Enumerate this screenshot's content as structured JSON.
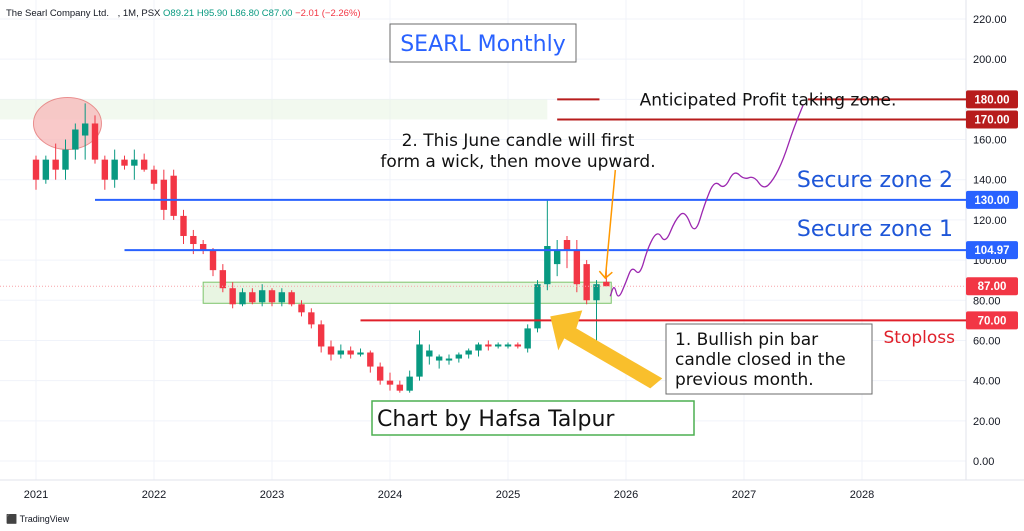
{
  "header": {
    "company": "The Searl Company Ltd.",
    "meta": ", 1M, PSX",
    "ohlc": "O89.21 H95.90 L86.80 C87.00",
    "change": "−2.01 (−2.26%)"
  },
  "footer": {
    "brand": "TradingView",
    "logo_icon": "tradingview-logo-icon"
  },
  "colors": {
    "up": "#089981",
    "down": "#f23645",
    "blue_line": "#2962ff",
    "red_line": "#e0202a",
    "dark_red": "#b71c1c",
    "projection": "#9c27b0",
    "arrow": "#f9bf2c",
    "title_border": "#2962ff",
    "credit_border": "#4caf50"
  },
  "chart_data": {
    "type": "candlestick",
    "title": "SEARL Monthly",
    "price_axis": {
      "ticks": [
        "0.00",
        "20.00",
        "40.00",
        "60.00",
        "80.00",
        "100.00",
        "120.00",
        "140.00",
        "160.00",
        "180.00",
        "200.00",
        "220.00"
      ],
      "range": [
        -6,
        224
      ]
    },
    "time_axis": {
      "labels": [
        "2021",
        "2022",
        "2023",
        "2024",
        "2025",
        "2026",
        "2027",
        "2028"
      ],
      "start": "2021-01",
      "end": "2028-06"
    },
    "candles": [
      {
        "t": "2021-01",
        "o": 150,
        "h": 152,
        "l": 135,
        "c": 140
      },
      {
        "t": "2021-02",
        "o": 140,
        "h": 152,
        "l": 138,
        "c": 150
      },
      {
        "t": "2021-03",
        "o": 150,
        "h": 158,
        "l": 140,
        "c": 145
      },
      {
        "t": "2021-04",
        "o": 145,
        "h": 160,
        "l": 140,
        "c": 155
      },
      {
        "t": "2021-05",
        "o": 155,
        "h": 168,
        "l": 150,
        "c": 165
      },
      {
        "t": "2021-06",
        "o": 162,
        "h": 178,
        "l": 150,
        "c": 168
      },
      {
        "t": "2021-07",
        "o": 168,
        "h": 172,
        "l": 148,
        "c": 150
      },
      {
        "t": "2021-08",
        "o": 150,
        "h": 152,
        "l": 135,
        "c": 140
      },
      {
        "t": "2021-09",
        "o": 140,
        "h": 155,
        "l": 136,
        "c": 150
      },
      {
        "t": "2021-10",
        "o": 150,
        "h": 152,
        "l": 145,
        "c": 147
      },
      {
        "t": "2021-11",
        "o": 147,
        "h": 155,
        "l": 140,
        "c": 150
      },
      {
        "t": "2021-12",
        "o": 150,
        "h": 153,
        "l": 144,
        "c": 145
      },
      {
        "t": "2022-01",
        "o": 145,
        "h": 147,
        "l": 135,
        "c": 138
      },
      {
        "t": "2022-02",
        "o": 140,
        "h": 145,
        "l": 120,
        "c": 125
      },
      {
        "t": "2022-03",
        "o": 142,
        "h": 145,
        "l": 120,
        "c": 122
      },
      {
        "t": "2022-04",
        "o": 122,
        "h": 125,
        "l": 108,
        "c": 112
      },
      {
        "t": "2022-05",
        "o": 112,
        "h": 115,
        "l": 103,
        "c": 108
      },
      {
        "t": "2022-06",
        "o": 108,
        "h": 110,
        "l": 103,
        "c": 105
      },
      {
        "t": "2022-07",
        "o": 105,
        "h": 106,
        "l": 92,
        "c": 95
      },
      {
        "t": "2022-08",
        "o": 95,
        "h": 98,
        "l": 84,
        "c": 86
      },
      {
        "t": "2022-09",
        "o": 86,
        "h": 89,
        "l": 76,
        "c": 78
      },
      {
        "t": "2022-10",
        "o": 78,
        "h": 86,
        "l": 77,
        "c": 84
      },
      {
        "t": "2022-11",
        "o": 84,
        "h": 86,
        "l": 78,
        "c": 79
      },
      {
        "t": "2022-12",
        "o": 79,
        "h": 88,
        "l": 77,
        "c": 85
      },
      {
        "t": "2023-01",
        "o": 85,
        "h": 86,
        "l": 77,
        "c": 79
      },
      {
        "t": "2023-02",
        "o": 79,
        "h": 86,
        "l": 77,
        "c": 84
      },
      {
        "t": "2023-03",
        "o": 84,
        "h": 85,
        "l": 77,
        "c": 78
      },
      {
        "t": "2023-04",
        "o": 78,
        "h": 80,
        "l": 72,
        "c": 74
      },
      {
        "t": "2023-05",
        "o": 74,
        "h": 76,
        "l": 66,
        "c": 68
      },
      {
        "t": "2023-06",
        "o": 68,
        "h": 70,
        "l": 54,
        "c": 57
      },
      {
        "t": "2023-07",
        "o": 57,
        "h": 60,
        "l": 50,
        "c": 53
      },
      {
        "t": "2023-08",
        "o": 53,
        "h": 58,
        "l": 51,
        "c": 55
      },
      {
        "t": "2023-09",
        "o": 55,
        "h": 57,
        "l": 51,
        "c": 53
      },
      {
        "t": "2023-10",
        "o": 53,
        "h": 56,
        "l": 52,
        "c": 54
      },
      {
        "t": "2023-11",
        "o": 54,
        "h": 55,
        "l": 44,
        "c": 47
      },
      {
        "t": "2023-12",
        "o": 47,
        "h": 49,
        "l": 38,
        "c": 40
      },
      {
        "t": "2024-01",
        "o": 40,
        "h": 44,
        "l": 35,
        "c": 38
      },
      {
        "t": "2024-02",
        "o": 38,
        "h": 40,
        "l": 34,
        "c": 35
      },
      {
        "t": "2024-03",
        "o": 35,
        "h": 45,
        "l": 34,
        "c": 42
      },
      {
        "t": "2024-04",
        "o": 42,
        "h": 65,
        "l": 40,
        "c": 58
      },
      {
        "t": "2024-05",
        "o": 52,
        "h": 58,
        "l": 48,
        "c": 55
      },
      {
        "t": "2024-06",
        "o": 50,
        "h": 53,
        "l": 46,
        "c": 52
      },
      {
        "t": "2024-07",
        "o": 50,
        "h": 53,
        "l": 48,
        "c": 51
      },
      {
        "t": "2024-08",
        "o": 51,
        "h": 54,
        "l": 49,
        "c": 53
      },
      {
        "t": "2024-09",
        "o": 53,
        "h": 56,
        "l": 51,
        "c": 55
      },
      {
        "t": "2024-10",
        "o": 55,
        "h": 59,
        "l": 52,
        "c": 58
      },
      {
        "t": "2024-11",
        "o": 58,
        "h": 60,
        "l": 55,
        "c": 57
      },
      {
        "t": "2024-12",
        "o": 57,
        "h": 59,
        "l": 56,
        "c": 58
      },
      {
        "t": "2025-01",
        "o": 57,
        "h": 59,
        "l": 56,
        "c": 58
      },
      {
        "t": "2025-02",
        "o": 58,
        "h": 59,
        "l": 56,
        "c": 57
      },
      {
        "t": "2025-03",
        "o": 56,
        "h": 68,
        "l": 54,
        "c": 66
      },
      {
        "t": "2025-04",
        "o": 66,
        "h": 90,
        "l": 64,
        "c": 88
      },
      {
        "t": "2025-05",
        "o": 88,
        "h": 130,
        "l": 85,
        "c": 107
      },
      {
        "t": "2025-06",
        "o": 98,
        "h": 110,
        "l": 92,
        "c": 105
      },
      {
        "t": "2025-07",
        "o": 110,
        "h": 112,
        "l": 96,
        "c": 105
      },
      {
        "t": "2025-08",
        "o": 105,
        "h": 110,
        "l": 84,
        "c": 88
      },
      {
        "t": "2025-09",
        "o": 98,
        "h": 100,
        "l": 78,
        "c": 80
      },
      {
        "t": "2025-10",
        "o": 80,
        "h": 90,
        "l": 60,
        "c": 88
      },
      {
        "t": "2025-11",
        "o": 89.21,
        "h": 95.9,
        "l": 86.8,
        "c": 87.0
      }
    ],
    "levels": [
      {
        "label": "Secure zone 2",
        "value": 130.0,
        "price_label": "130.00"
      },
      {
        "label": "Secure zone 1",
        "value": 104.97,
        "price_label": "104.97"
      },
      {
        "label": "Stoploss",
        "value": 70.0,
        "price_label": "70.00"
      },
      {
        "label": "Anticipated Profit taking zone.",
        "value": 180.0,
        "price_label": "180.00"
      },
      {
        "label": "",
        "value": 170.0,
        "price_label": "170.00"
      },
      {
        "label": "",
        "value": 87.0,
        "price_label": "87.00"
      }
    ],
    "support_zone": [
      78.5,
      89
    ],
    "projection": [
      {
        "t": "2025-11.4",
        "p": 82
      },
      {
        "t": "2025-11.8",
        "p": 88
      },
      {
        "t": "2025-12.2",
        "p": 80
      },
      {
        "t": "2026-01.0",
        "p": 89
      },
      {
        "t": "2026-01.6",
        "p": 97
      },
      {
        "t": "2026-02.4",
        "p": 92
      },
      {
        "t": "2026-03.2",
        "p": 106
      },
      {
        "t": "2026-04.2",
        "p": 115
      },
      {
        "t": "2026-05.0",
        "p": 108
      },
      {
        "t": "2026-06.0",
        "p": 120
      },
      {
        "t": "2026-07.0",
        "p": 125
      },
      {
        "t": "2026-08.0",
        "p": 112
      },
      {
        "t": "2026-09.0",
        "p": 128
      },
      {
        "t": "2026-10.0",
        "p": 140
      },
      {
        "t": "2026-11.0",
        "p": 135
      },
      {
        "t": "2026-12.0",
        "p": 145
      },
      {
        "t": "2027-01.0",
        "p": 140
      },
      {
        "t": "2027-02.0",
        "p": 142
      },
      {
        "t": "2027-03.0",
        "p": 135
      },
      {
        "t": "2027-04.0",
        "p": 140
      },
      {
        "t": "2027-05.0",
        "p": 150
      },
      {
        "t": "2027-06.0",
        "p": 165
      },
      {
        "t": "2027-07.0",
        "p": 177
      }
    ],
    "annotations": {
      "title": "SEARL Monthly",
      "secure_zone_2": "Secure zone 2",
      "secure_zone_1": "Secure zone 1",
      "stoploss": "Stoploss",
      "profit_zone": "Anticipated Profit taking zone.",
      "note_june": [
        "2. This June candle will first",
        "form a wick, then move upward."
      ],
      "note_pinbar": [
        "1. Bullish pin bar",
        "candle closed in the",
        "previous month."
      ],
      "credit": "Chart by Hafsa Talpur"
    }
  }
}
